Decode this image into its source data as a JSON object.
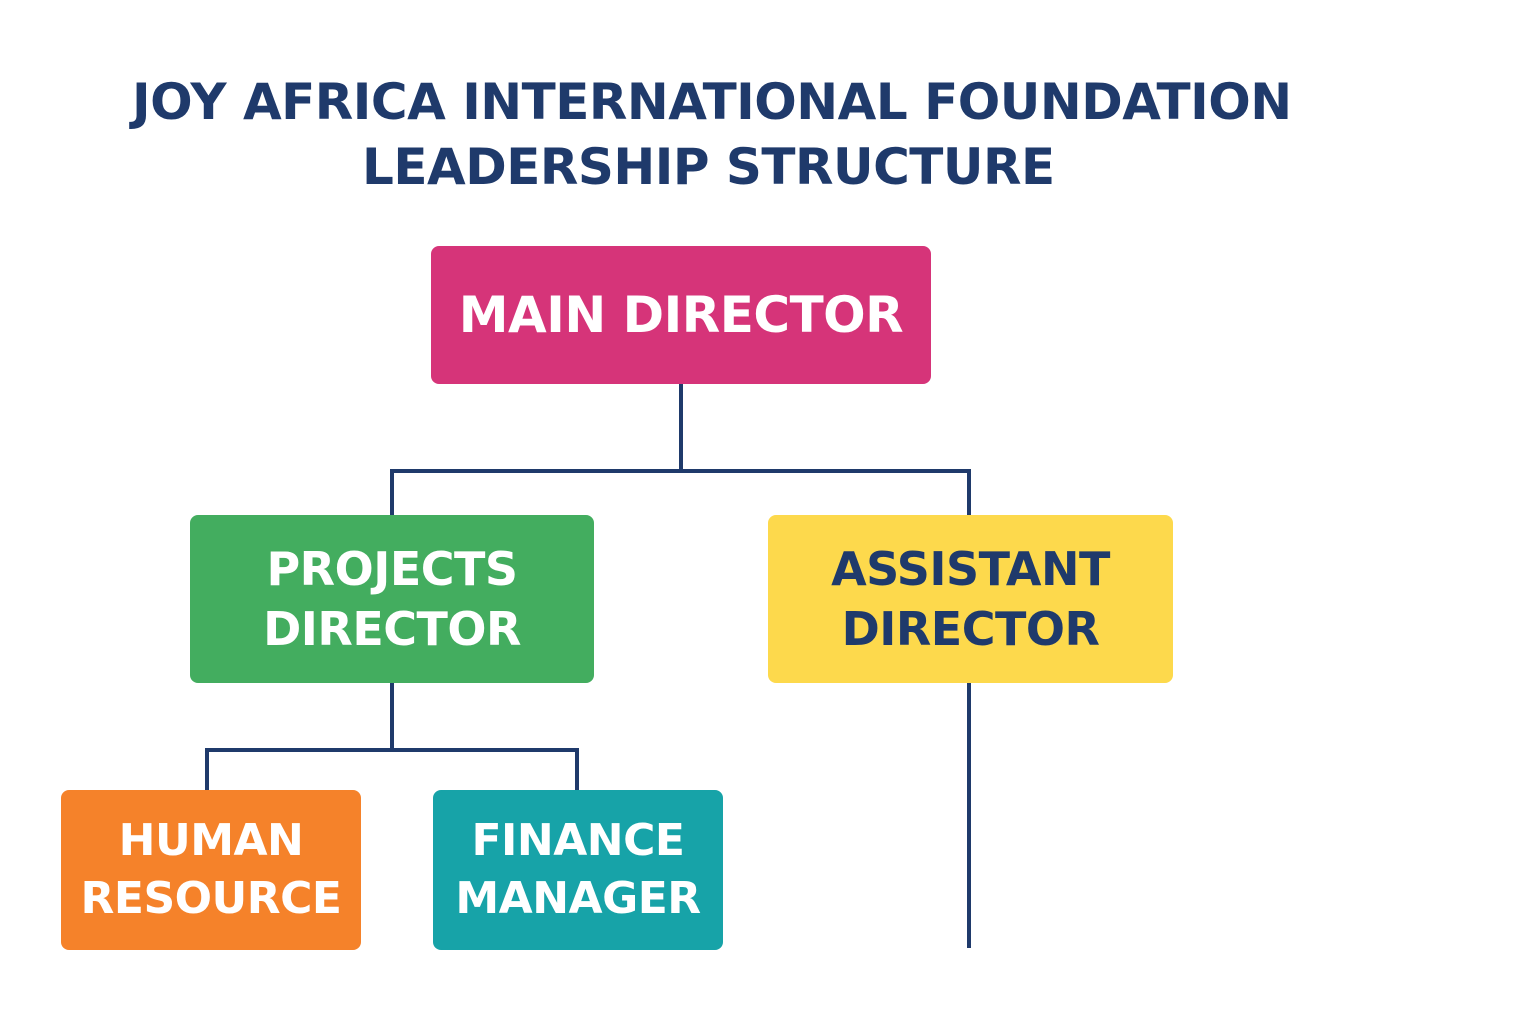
{
  "title": {
    "line1": "JOY AFRICA INTERNATIONAL FOUNDATION",
    "line2": "LEADERSHIP STRUCTURE",
    "color": "#1f3a6b"
  },
  "connector_color": "#1f3a6b",
  "nodes": {
    "main": {
      "label": "MAIN DIRECTOR",
      "bg": "#d63479",
      "fg": "#ffffff"
    },
    "projects": {
      "label": "PROJECTS\nDIRECTOR",
      "bg": "#43ad5f",
      "fg": "#ffffff"
    },
    "assistant": {
      "label": "ASSISTANT\nDIRECTOR",
      "bg": "#fdd94c",
      "fg": "#1f3a6b"
    },
    "hr": {
      "label": "HUMAN\nRESOURCE",
      "bg": "#f5822a",
      "fg": "#ffffff"
    },
    "finance": {
      "label": "FINANCE\nMANAGER",
      "bg": "#17a3a8",
      "fg": "#ffffff"
    }
  }
}
